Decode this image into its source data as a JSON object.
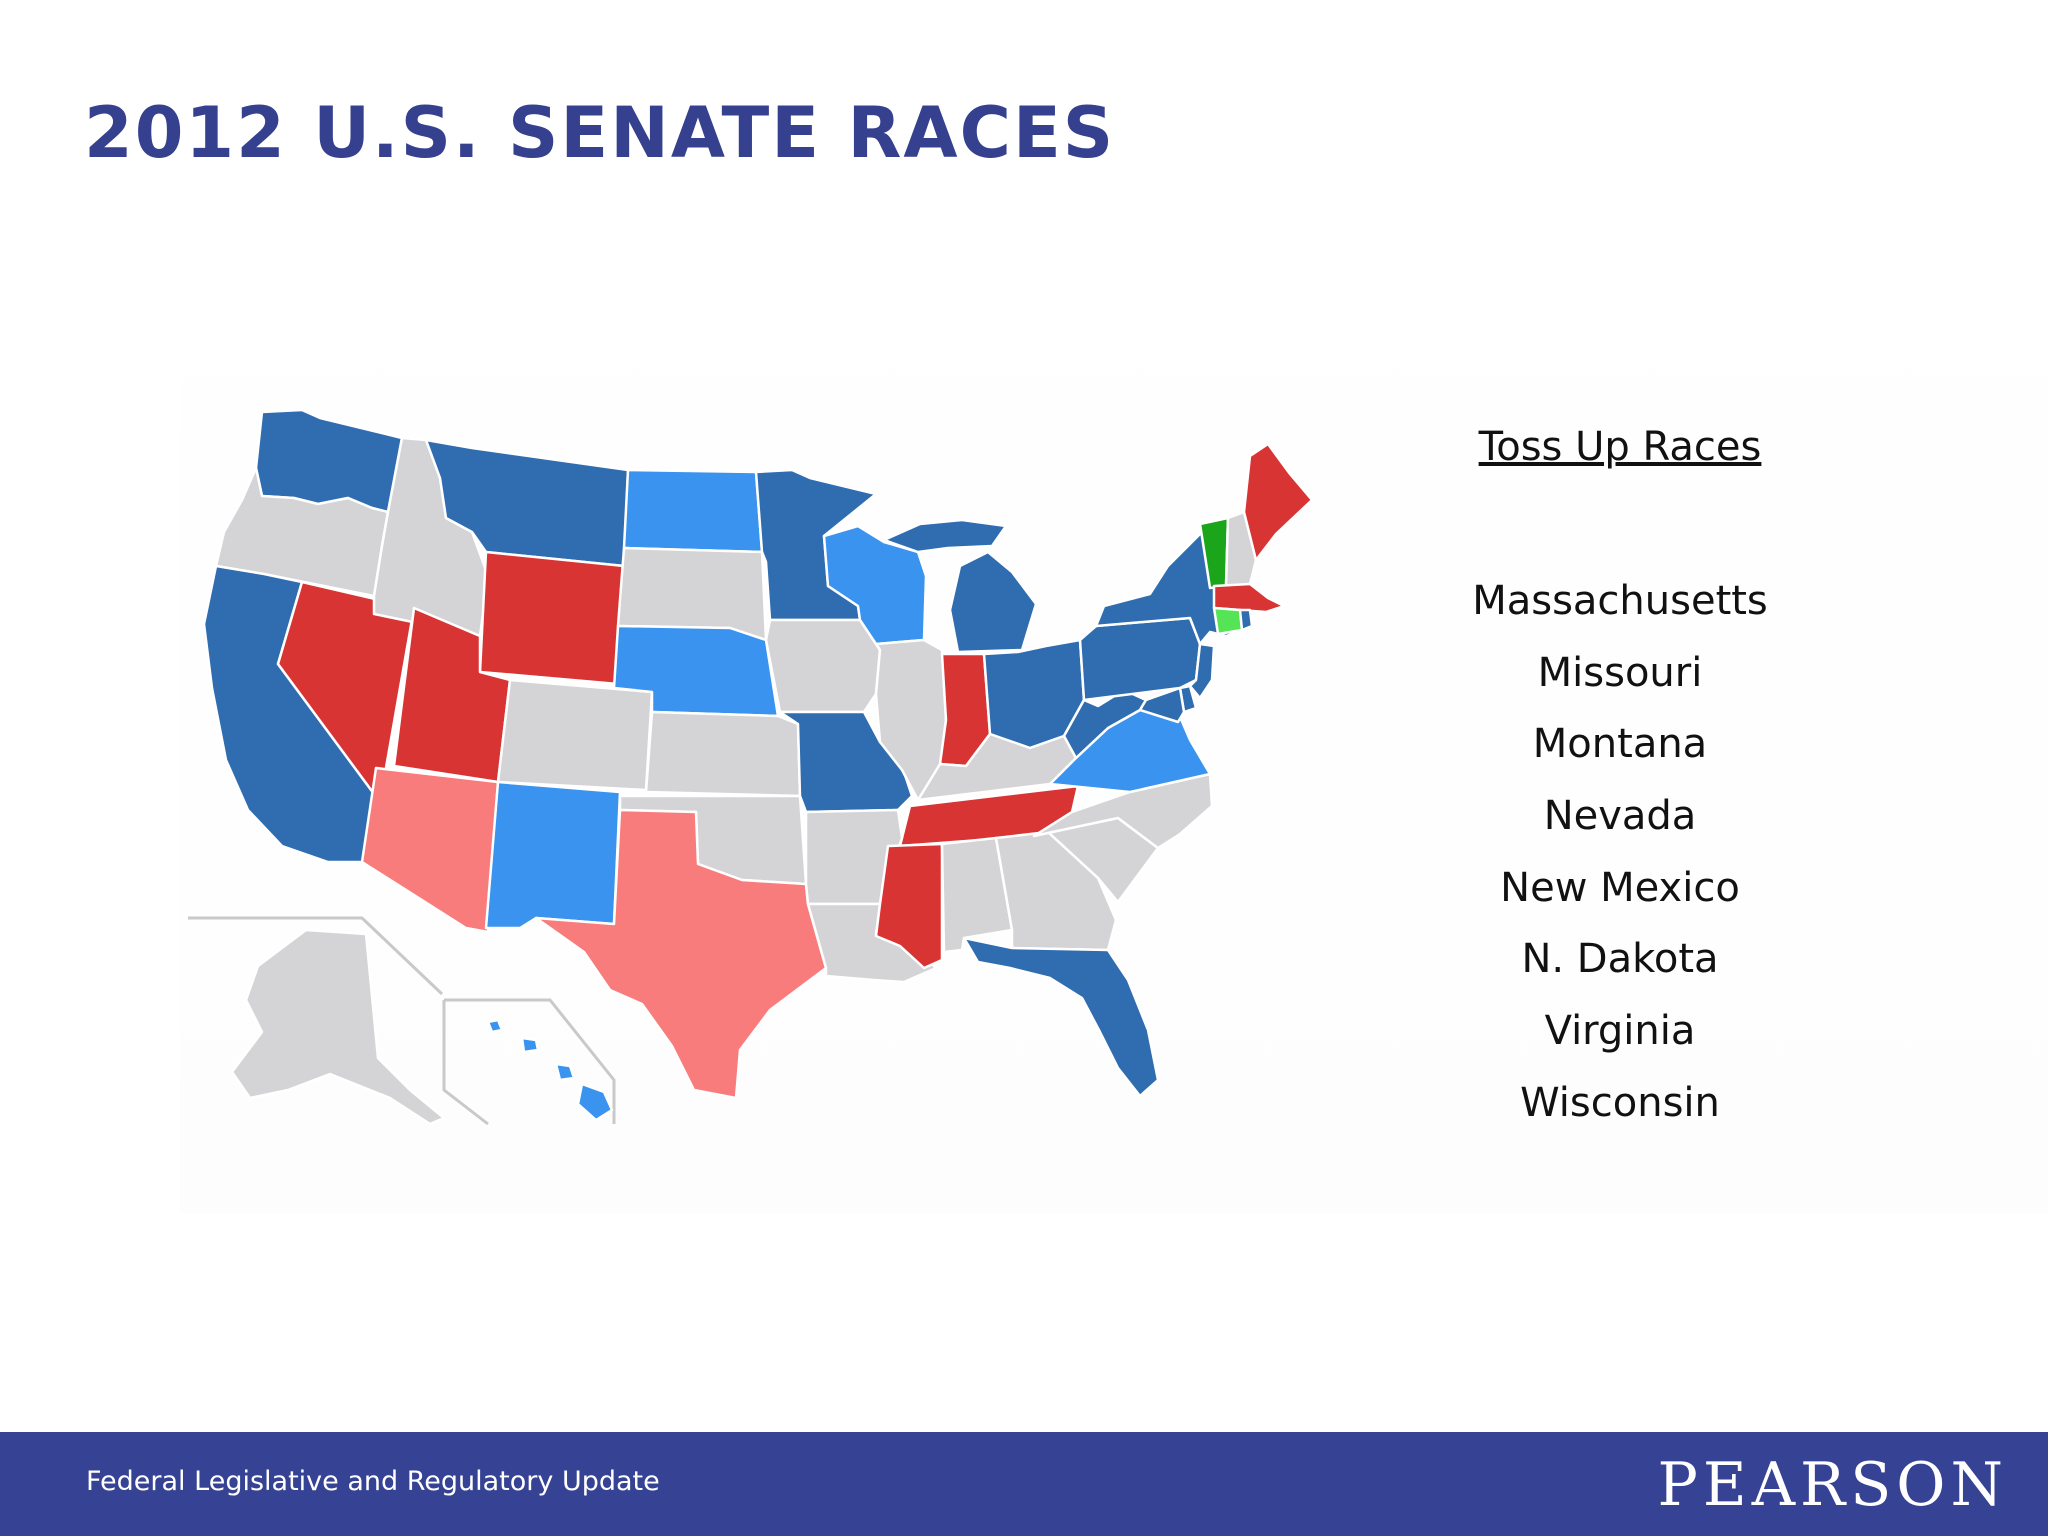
{
  "title": "2012 U.S. SENATE RACES",
  "legend_heading": "Toss Up Races",
  "toss_up_races": [
    "Massachusetts",
    "Missouri",
    "Montana",
    "Nevada",
    "New Mexico",
    "N. Dakota",
    "Virginia",
    "Wisconsin"
  ],
  "footer": {
    "text": "Federal Legislative and Regulatory Update",
    "logo": "PEARSON"
  },
  "map": {
    "colors": {
      "democratic_held": "#2f6cb0",
      "democratic_leaning": "#3a93ef",
      "republican_held": "#d93434",
      "republican_leaning": "#f97c7c",
      "independent_held": "#1aa51a",
      "independent_leaning": "#55e455",
      "no_race": "#d4d4d6"
    },
    "states": {
      "democratic_held": [
        "Washington",
        "Montana",
        "Minnesota",
        "California",
        "Missouri",
        "Michigan",
        "Ohio",
        "Pennsylvania",
        "New York",
        "West Virginia",
        "Florida",
        "New Jersey",
        "Maryland",
        "Delaware",
        "Hawaii"
      ],
      "democratic_leaning": [
        "North Dakota",
        "Wisconsin",
        "Nebraska",
        "New Mexico",
        "Virginia",
        "Hawaii"
      ],
      "republican_held": [
        "Wyoming",
        "Nevada",
        "Utah",
        "Indiana",
        "Tennessee",
        "Mississippi",
        "Maine",
        "Massachusetts"
      ],
      "republican_leaning": [
        "Arizona",
        "Texas"
      ],
      "independent_held": [
        "Vermont"
      ],
      "independent_leaning": [
        "Connecticut"
      ]
    }
  }
}
